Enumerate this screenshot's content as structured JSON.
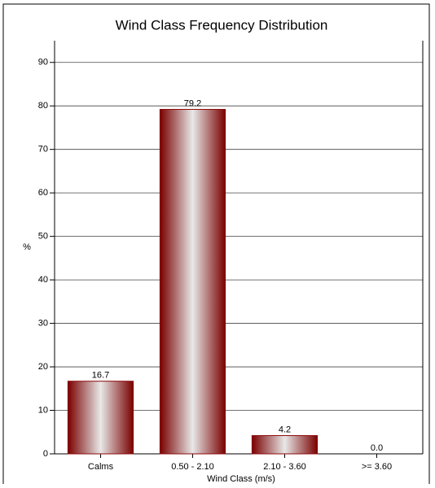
{
  "chart_data": {
    "type": "bar",
    "title": "Wind Class Frequency Distribution",
    "x_label": "Wind Class (m/s)",
    "y_label": "%",
    "categories": [
      "Calms",
      "0.50 - 2.10",
      "2.10 - 3.60",
      ">= 3.60"
    ],
    "values": [
      16.7,
      79.2,
      4.2,
      0
    ],
    "value_labels": [
      "16.7",
      "79.2",
      "4.2",
      "0.0"
    ],
    "color": "#8b0a0a",
    "ylim": [
      0,
      95
    ],
    "yticks": [
      0,
      10,
      20,
      30,
      40,
      50,
      60,
      70,
      80,
      90
    ],
    "grid": true
  }
}
